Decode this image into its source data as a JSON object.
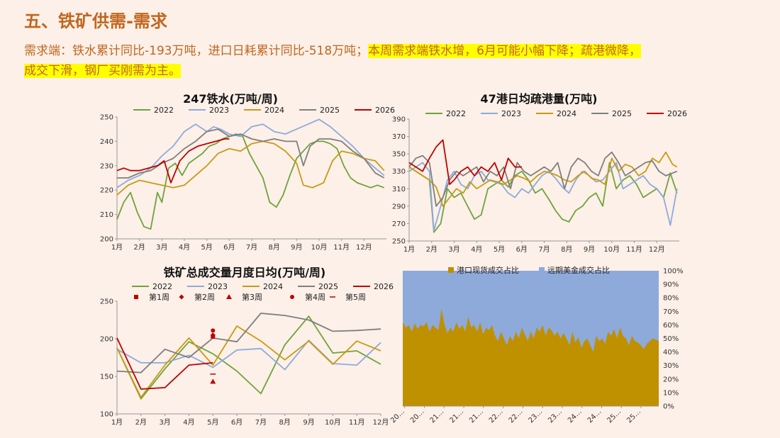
{
  "header": {
    "title": "五、铁矿供需-需求",
    "desc_plain": "需求端：铁水累计同比-193万吨，进口日耗累计同比-518万吨；",
    "desc_highlight_1": "本周需求端铁水增，6月可能小幅下降；疏港微降，",
    "desc_highlight_2": "成交下滑，钢厂买刚需为主。"
  },
  "colors": {
    "2022": "#70a33a",
    "2023": "#8eaadb",
    "2024": "#c99a14",
    "2025": "#7f7f7f",
    "2026": "#c00000",
    "port": "#bf9000",
    "forward": "#8eaadb"
  },
  "chart_data": [
    {
      "id": "hot_metal",
      "type": "line",
      "title": "247铁水(万吨/周)",
      "ylim": [
        200,
        250
      ],
      "yticks": [
        "200",
        "210",
        "220",
        "230",
        "240",
        "250"
      ],
      "xticks": [
        "1月",
        "2月",
        "3月",
        "4月",
        "5月",
        "6月",
        "7月",
        "8月",
        "9月",
        "10月",
        "11月",
        "12月"
      ],
      "x_range": [
        1,
        13
      ],
      "series": [
        {
          "name": "2022",
          "x": [
            1,
            1.3,
            1.6,
            1.9,
            2.2,
            2.5,
            2.8,
            3.0,
            3.3,
            3.6,
            3.9,
            4.2,
            4.5,
            4.8,
            5.1,
            5.4,
            5.7,
            6.0,
            6.3,
            6.6,
            6.9,
            7.2,
            7.5,
            7.8,
            8.1,
            8.4,
            8.7,
            9.0,
            9.3,
            9.6,
            9.9,
            10.2,
            10.5,
            10.8,
            11.1,
            11.4,
            11.7,
            12.0,
            12.3,
            12.6,
            12.9
          ],
          "values": [
            208,
            215,
            219,
            211,
            205,
            204,
            219,
            215,
            229,
            231,
            226,
            231,
            233,
            235,
            238,
            239,
            241,
            242,
            243,
            242,
            235,
            230,
            225,
            215,
            213,
            218,
            226,
            233,
            236,
            239,
            240,
            240,
            239,
            237,
            230,
            225,
            223,
            222,
            221,
            222,
            221
          ]
        },
        {
          "name": "2023",
          "x": [
            1,
            1.5,
            2.0,
            2.5,
            3.0,
            3.5,
            4.0,
            4.5,
            5.0,
            5.3,
            5.6,
            6.0,
            6.5,
            7.0,
            7.5,
            8.0,
            8.5,
            9.0,
            9.5,
            10.0,
            10.5,
            11.0,
            11.5,
            12.0,
            12.5,
            12.9
          ],
          "values": [
            221,
            224,
            226,
            229,
            234,
            238,
            244,
            247,
            244,
            246,
            245,
            243,
            242,
            246,
            247,
            244,
            243,
            245,
            247,
            249,
            246,
            242,
            238,
            233,
            229,
            226
          ]
        },
        {
          "name": "2024",
          "x": [
            1,
            1.5,
            2.0,
            2.5,
            3.0,
            3.5,
            4.0,
            4.5,
            5.0,
            5.5,
            6.0,
            6.5,
            7.0,
            7.5,
            8.0,
            8.5,
            9.0,
            9.3,
            9.7,
            10.2,
            10.6,
            11.0,
            11.5,
            12.0,
            12.5,
            12.9
          ],
          "values": [
            218,
            222,
            224,
            223,
            222,
            221,
            222,
            226,
            230,
            235,
            237,
            236,
            239,
            240,
            239,
            236,
            231,
            222,
            221,
            223,
            232,
            236,
            235,
            233,
            232,
            228
          ]
        },
        {
          "name": "2025",
          "x": [
            1,
            1.5,
            2.0,
            2.5,
            3.0,
            3.5,
            4.0,
            4.5,
            5.0,
            5.5,
            6.0,
            6.5,
            7.0,
            7.5,
            8.0,
            8.5,
            9.0,
            9.3,
            9.6,
            10.0,
            10.5,
            11.0,
            11.5,
            12.0,
            12.5,
            12.9
          ],
          "values": [
            225,
            225,
            227,
            228,
            231,
            233,
            237,
            240,
            244,
            245,
            242,
            243,
            241,
            240,
            241,
            240,
            240,
            230,
            238,
            241,
            241,
            240,
            236,
            233,
            227,
            225
          ]
        },
        {
          "name": "2026",
          "x": [
            1,
            1.3,
            1.6,
            2.0,
            2.4,
            2.8,
            3.1,
            3.4,
            3.8,
            4.2,
            4.6,
            5.0,
            5.4,
            5.8,
            6.0
          ],
          "values": [
            228,
            229,
            228,
            228,
            229,
            230,
            232,
            223,
            232,
            236,
            238,
            239,
            240,
            241,
            241
          ]
        }
      ]
    },
    {
      "id": "port_clearance",
      "type": "line",
      "title": "47港日均疏港量(万吨)",
      "ylim": [
        250,
        390
      ],
      "yticks": [
        "250",
        "270",
        "290",
        "310",
        "330",
        "350",
        "370",
        "390"
      ],
      "xticks": [
        "1月",
        "2月",
        "3月",
        "4月",
        "5月",
        "6月",
        "7月",
        "8月",
        "9月",
        "10月",
        "11月",
        "12月"
      ],
      "x_range": [
        1,
        13
      ],
      "series": [
        {
          "name": "2022",
          "x": [
            1,
            1.3,
            1.6,
            1.9,
            2.1,
            2.4,
            2.7,
            3.0,
            3.3,
            3.6,
            3.9,
            4.2,
            4.5,
            4.8,
            5.1,
            5.4,
            5.7,
            6.0,
            6.3,
            6.6,
            6.9,
            7.2,
            7.5,
            7.8,
            8.1,
            8.4,
            8.7,
            9.0,
            9.3,
            9.6,
            9.9,
            10.2,
            10.5,
            10.8,
            11.1,
            11.4,
            11.7,
            12.0,
            12.3,
            12.6,
            12.9
          ],
          "values": [
            335,
            330,
            325,
            320,
            260,
            270,
            310,
            300,
            305,
            290,
            275,
            280,
            310,
            315,
            320,
            312,
            325,
            330,
            320,
            305,
            310,
            298,
            285,
            275,
            272,
            285,
            290,
            300,
            305,
            290,
            340,
            310,
            320,
            325,
            315,
            300,
            305,
            310,
            300,
            328,
            305
          ]
        },
        {
          "name": "2023",
          "x": [
            1,
            1.3,
            1.6,
            1.9,
            2.1,
            2.4,
            2.7,
            3.0,
            3.3,
            3.6,
            3.9,
            4.2,
            4.5,
            4.8,
            5.1,
            5.4,
            5.7,
            6.0,
            6.3,
            6.6,
            6.9,
            7.2,
            7.5,
            7.8,
            8.1,
            8.4,
            8.7,
            9.0,
            9.3,
            9.6,
            9.9,
            10.2,
            10.5,
            10.8,
            11.1,
            11.4,
            11.7,
            12.0,
            12.3,
            12.6,
            12.9
          ],
          "values": [
            330,
            335,
            340,
            330,
            262,
            290,
            320,
            330,
            315,
            310,
            325,
            330,
            320,
            318,
            315,
            305,
            300,
            310,
            305,
            315,
            325,
            330,
            322,
            312,
            305,
            320,
            330,
            325,
            318,
            320,
            330,
            340,
            310,
            315,
            320,
            325,
            315,
            310,
            300,
            268,
            310
          ]
        },
        {
          "name": "2024",
          "x": [
            1,
            1.3,
            1.6,
            1.9,
            2.2,
            2.5,
            2.8,
            3.1,
            3.4,
            3.7,
            4.0,
            4.3,
            4.6,
            4.9,
            5.2,
            5.5,
            5.8,
            6.1,
            6.4,
            6.7,
            7.0,
            7.3,
            7.6,
            7.9,
            8.2,
            8.5,
            8.8,
            9.1,
            9.4,
            9.7,
            10.0,
            10.3,
            10.6,
            10.9,
            11.2,
            11.5,
            11.8,
            12.1,
            12.4,
            12.7,
            12.9
          ],
          "values": [
            335,
            330,
            325,
            320,
            312,
            290,
            300,
            310,
            305,
            318,
            310,
            315,
            320,
            318,
            315,
            320,
            325,
            322,
            318,
            325,
            330,
            328,
            325,
            320,
            318,
            325,
            330,
            322,
            320,
            315,
            345,
            330,
            338,
            335,
            325,
            330,
            345,
            340,
            352,
            338,
            335
          ]
        },
        {
          "name": "2025",
          "x": [
            1,
            1.3,
            1.6,
            1.9,
            2.2,
            2.5,
            2.8,
            3.1,
            3.4,
            3.7,
            4.0,
            4.3,
            4.6,
            4.9,
            5.2,
            5.5,
            5.8,
            6.1,
            6.4,
            6.7,
            7.0,
            7.3,
            7.6,
            7.9,
            8.2,
            8.5,
            8.8,
            9.1,
            9.4,
            9.7,
            10.0,
            10.3,
            10.6,
            10.9,
            11.2,
            11.5,
            11.8,
            12.1,
            12.4,
            12.7,
            12.9
          ],
          "values": [
            335,
            345,
            348,
            340,
            290,
            300,
            320,
            330,
            325,
            330,
            335,
            318,
            330,
            325,
            335,
            310,
            340,
            330,
            325,
            330,
            335,
            330,
            340,
            310,
            335,
            345,
            340,
            330,
            325,
            345,
            352,
            340,
            325,
            330,
            335,
            340,
            342,
            330,
            325,
            328,
            330
          ]
        },
        {
          "name": "2026",
          "x": [
            1,
            1.3,
            1.6,
            1.9,
            2.2,
            2.5,
            2.8,
            3.0,
            3.3,
            3.6,
            3.9,
            4.2,
            4.5,
            4.8,
            5.1,
            5.4,
            5.7,
            6.0
          ],
          "values": [
            340,
            335,
            330,
            345,
            358,
            366,
            315,
            320,
            330,
            335,
            325,
            335,
            330,
            340,
            320,
            345,
            335,
            335
          ]
        }
      ]
    },
    {
      "id": "monthly_volume",
      "type": "line",
      "title": "铁矿总成交量月度日均(万吨/周)",
      "ylim": [
        100,
        250
      ],
      "yticks": [
        "100",
        "150",
        "200",
        "250"
      ],
      "xticks": [
        "1月",
        "2月",
        "3月",
        "4月",
        "5月",
        "6月",
        "7月",
        "8月",
        "9月",
        "10月",
        "11月",
        "12月"
      ],
      "x_range": [
        1,
        12
      ],
      "series": [
        {
          "name": "2022",
          "x": [
            1,
            2,
            3,
            4,
            5,
            6,
            7,
            8,
            9,
            10,
            11,
            12
          ],
          "values": [
            188,
            120,
            160,
            196,
            180,
            157,
            127,
            192,
            230,
            181,
            184,
            166
          ]
        },
        {
          "name": "2023",
          "x": [
            1,
            2,
            3,
            4,
            5,
            6,
            7,
            8,
            9,
            10,
            11,
            12
          ],
          "values": [
            186,
            168,
            168,
            178,
            162,
            185,
            187,
            159,
            198,
            167,
            165,
            195
          ]
        },
        {
          "name": "2024",
          "x": [
            1,
            2,
            3,
            4,
            5,
            6,
            7,
            8,
            9,
            10,
            11,
            12
          ],
          "values": [
            188,
            122,
            165,
            201,
            165,
            217,
            197,
            172,
            197,
            166,
            197,
            184
          ]
        },
        {
          "name": "2025",
          "x": [
            1,
            2,
            3,
            4,
            5,
            6,
            7,
            8,
            9,
            10,
            11,
            12
          ],
          "values": [
            157,
            155,
            186,
            175,
            201,
            196,
            234,
            231,
            225,
            210,
            211,
            213
          ]
        },
        {
          "name": "2026",
          "x": [
            1,
            2,
            3,
            4,
            5
          ],
          "values": [
            201,
            133,
            135,
            165,
            168
          ]
        }
      ],
      "weekly_markers": [
        {
          "name": "第1周",
          "symbol": "square",
          "x": 5,
          "value": 203
        },
        {
          "name": "第2周",
          "symbol": "diamond",
          "x": 5,
          "value": 205
        },
        {
          "name": "第3周",
          "symbol": "triangle",
          "x": 5,
          "value": 143
        },
        {
          "name": "第4周",
          "symbol": "circle",
          "x": 5,
          "value": 211
        },
        {
          "name": "第5周",
          "symbol": "dash",
          "x": 5,
          "value": 153
        }
      ]
    },
    {
      "id": "trade_share",
      "type": "area",
      "legend": [
        "港口现货成交占比",
        "远期美金成交占比"
      ],
      "ylim": [
        0,
        100
      ],
      "yticks": [
        "0%",
        "10%",
        "20%",
        "30%",
        "40%",
        "50%",
        "60%",
        "70%",
        "80%",
        "90%",
        "100%"
      ],
      "xticks": [
        "20…",
        "20…",
        "21…",
        "21…",
        "21…",
        "22…",
        "22…",
        "23…",
        "23…",
        "24…",
        "24…",
        "25…",
        "25…"
      ],
      "port_share": [
        62,
        58,
        60,
        55,
        61,
        57,
        60,
        59,
        62,
        55,
        60,
        58,
        56,
        72,
        60,
        54,
        58,
        55,
        62,
        57,
        60,
        55,
        66,
        58,
        60,
        55,
        62,
        53,
        58,
        56,
        60,
        52,
        48,
        55,
        50,
        45,
        52,
        48,
        55,
        50,
        58,
        53,
        48,
        55,
        50,
        58,
        55,
        60,
        52,
        58,
        56,
        52,
        55,
        50,
        54,
        50,
        45,
        55,
        47,
        51,
        43,
        48,
        50,
        45,
        40,
        52,
        48,
        50,
        46,
        55,
        52,
        57,
        50,
        58,
        52,
        50,
        45,
        52,
        48,
        47,
        45,
        42,
        46,
        48,
        50,
        49,
        48
      ]
    }
  ]
}
